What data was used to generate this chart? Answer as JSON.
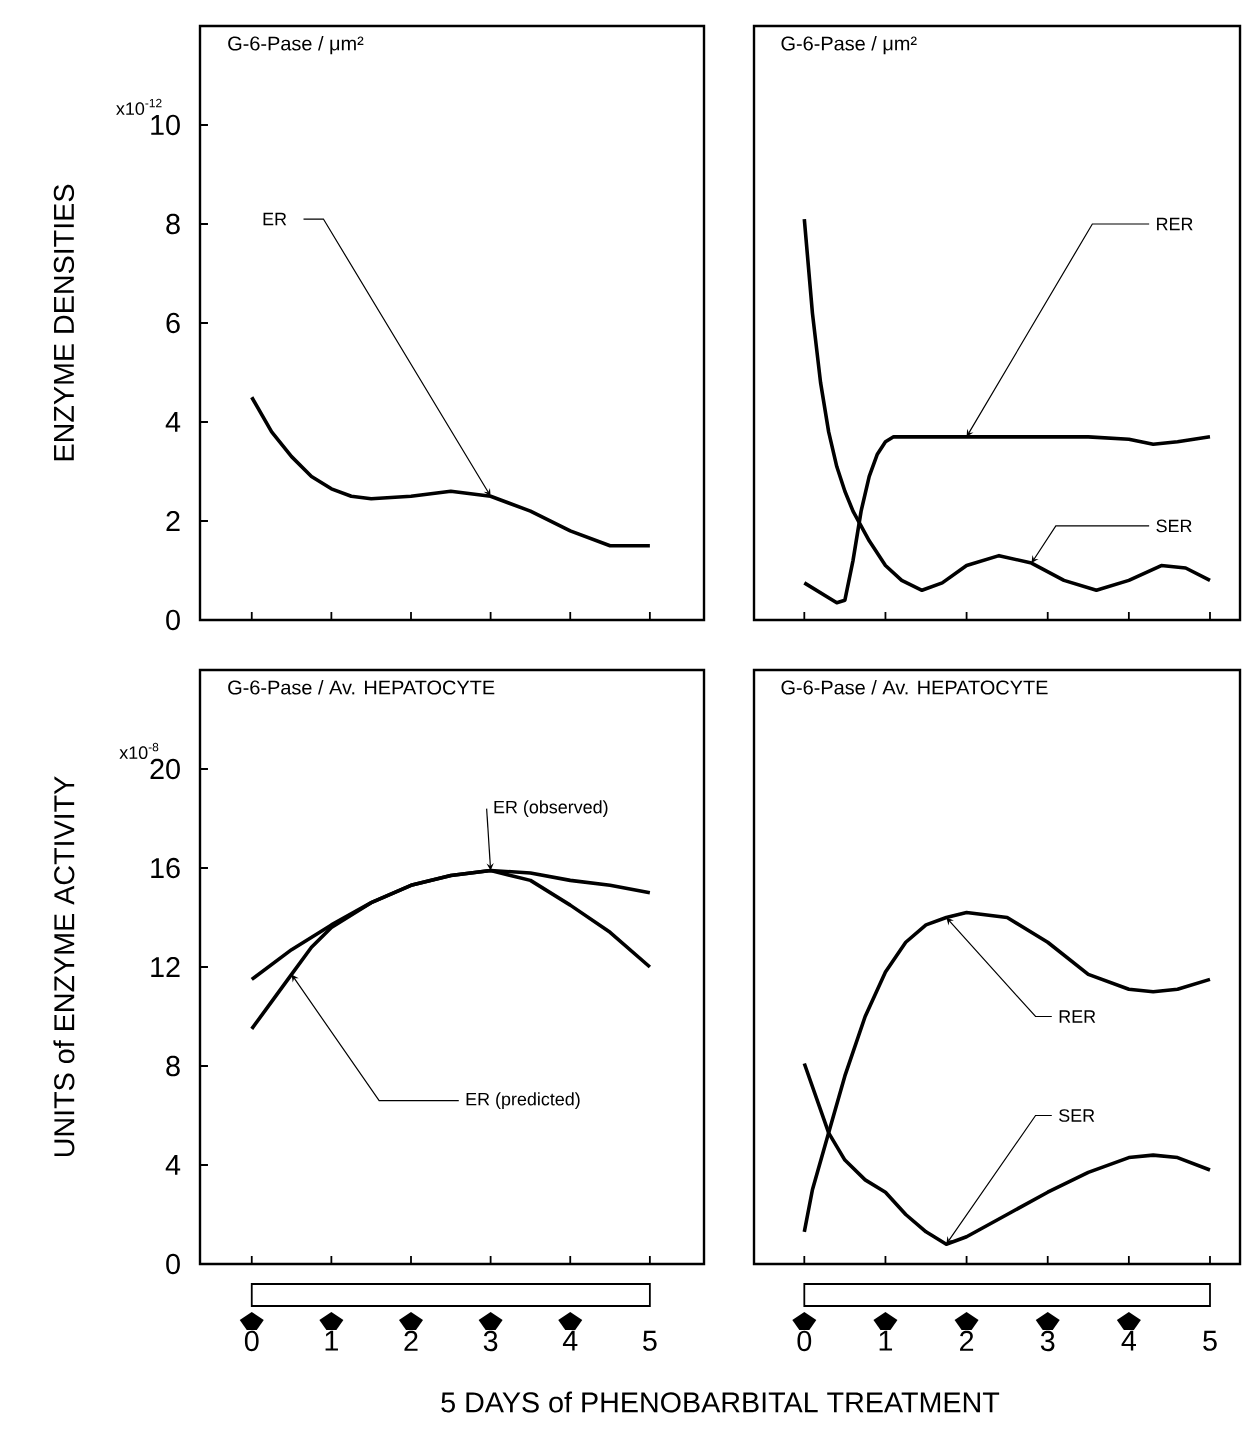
{
  "chart_data": [
    {
      "type": "line",
      "title": "G-6-Pase / μm²",
      "ylabel": "ENZYME DENSITIES",
      "annotations": [
        "x10$^{-12}$"
      ],
      "xlim": [
        -0.65,
        5.68
      ],
      "ylim": [
        0,
        12
      ],
      "xticks": [
        0,
        1,
        2,
        3,
        4,
        5
      ],
      "yticks": [
        0,
        2,
        4,
        6,
        8,
        10
      ],
      "tick_labels": "y",
      "series": [
        {
          "name": "ER",
          "color": "#000000",
          "x": [
            0,
            0.25,
            0.5,
            0.75,
            1,
            1.25,
            1.5,
            2,
            2.5,
            3,
            3.5,
            4,
            4.5,
            5
          ],
          "values": [
            4.5,
            3.8,
            3.3,
            2.9,
            2.65,
            2.5,
            2.45,
            2.5,
            2.6,
            2.5,
            2.2,
            1.8,
            1.5,
            1.5
          ]
        }
      ]
    },
    {
      "type": "line",
      "title": "G-6-Pase / μm²",
      "xlim": [
        -0.62,
        5.37
      ],
      "ylim": [
        0,
        12
      ],
      "xticks": [
        0,
        1,
        2,
        3,
        4,
        5
      ],
      "tick_labels": false,
      "series": [
        {
          "name": "RER",
          "color": "#000000",
          "x": [
            0,
            0.2,
            0.4,
            0.5,
            0.6,
            0.7,
            0.8,
            0.9,
            1.0,
            1.1,
            2,
            3,
            3.5,
            4,
            4.3,
            4.6,
            5
          ],
          "values": [
            0.75,
            0.55,
            0.35,
            0.4,
            1.2,
            2.2,
            2.9,
            3.35,
            3.6,
            3.7,
            3.7,
            3.7,
            3.7,
            3.65,
            3.55,
            3.6,
            3.7
          ]
        },
        {
          "name": "SER",
          "color": "#000000",
          "x": [
            0,
            0.1,
            0.2,
            0.3,
            0.4,
            0.5,
            0.6,
            0.8,
            1.0,
            1.2,
            1.45,
            1.7,
            2.0,
            2.4,
            2.8,
            3.2,
            3.6,
            4.0,
            4.4,
            4.7,
            5
          ],
          "values": [
            8.1,
            6.2,
            4.8,
            3.8,
            3.1,
            2.6,
            2.2,
            1.6,
            1.1,
            0.8,
            0.6,
            0.75,
            1.1,
            1.3,
            1.15,
            0.8,
            0.6,
            0.8,
            1.1,
            1.05,
            0.8
          ]
        }
      ]
    },
    {
      "type": "line",
      "title": "G-6-Pase / Av. HEPATOCYTE",
      "ylabel": "UNITS of ENZYME ACTIVITY",
      "xlabel": "5 DAYS of PHENOBARBITAL TREATMENT",
      "annotations": [
        "x10$^{-8}$"
      ],
      "xlim": [
        -0.65,
        5.68
      ],
      "ylim": [
        0,
        24
      ],
      "xticks": [
        0,
        1,
        2,
        3,
        4,
        5
      ],
      "yticks": [
        0,
        4,
        8,
        12,
        16,
        20
      ],
      "series": [
        {
          "name": "ER (observed)",
          "color": "#000000",
          "x": [
            0,
            0.5,
            1,
            1.5,
            2,
            2.5,
            3,
            3.5,
            4,
            4.5,
            5
          ],
          "values": [
            11.5,
            12.7,
            13.7,
            14.6,
            15.3,
            15.7,
            15.9,
            15.8,
            15.5,
            15.3,
            15.0
          ]
        },
        {
          "name": "ER (predicted)",
          "color": "#000000",
          "x": [
            0,
            0.25,
            0.5,
            0.75,
            1,
            1.5,
            2,
            2.5,
            3,
            3.5,
            4,
            4.5,
            5
          ],
          "values": [
            9.5,
            10.6,
            11.7,
            12.8,
            13.6,
            14.6,
            15.3,
            15.7,
            15.9,
            15.5,
            14.5,
            13.4,
            12.0
          ]
        }
      ]
    },
    {
      "type": "line",
      "title": "G-6-Pase / Av. HEPATOCYTE",
      "xlim": [
        -0.62,
        5.37
      ],
      "ylim": [
        0,
        24
      ],
      "xticks": [
        0,
        1,
        2,
        3,
        4,
        5
      ],
      "tick_labels": "x",
      "series": [
        {
          "name": "RER",
          "color": "#000000",
          "x": [
            0,
            0.1,
            0.3,
            0.5,
            0.75,
            1,
            1.25,
            1.5,
            1.75,
            2,
            2.5,
            3,
            3.5,
            4,
            4.3,
            4.6,
            5
          ],
          "values": [
            1.3,
            3.0,
            5.3,
            7.6,
            10.0,
            11.8,
            13.0,
            13.7,
            14.0,
            14.2,
            14.0,
            13.0,
            11.7,
            11.1,
            11.0,
            11.1,
            11.5
          ]
        },
        {
          "name": "SER",
          "color": "#000000",
          "x": [
            0,
            0.3,
            0.5,
            0.75,
            1,
            1.25,
            1.5,
            1.75,
            2,
            2.5,
            3,
            3.5,
            4,
            4.3,
            4.6,
            5
          ],
          "values": [
            8.1,
            5.3,
            4.2,
            3.4,
            2.9,
            2.0,
            1.3,
            0.8,
            1.1,
            2.0,
            2.9,
            3.7,
            4.3,
            4.4,
            4.3,
            3.8
          ]
        }
      ]
    }
  ]
}
